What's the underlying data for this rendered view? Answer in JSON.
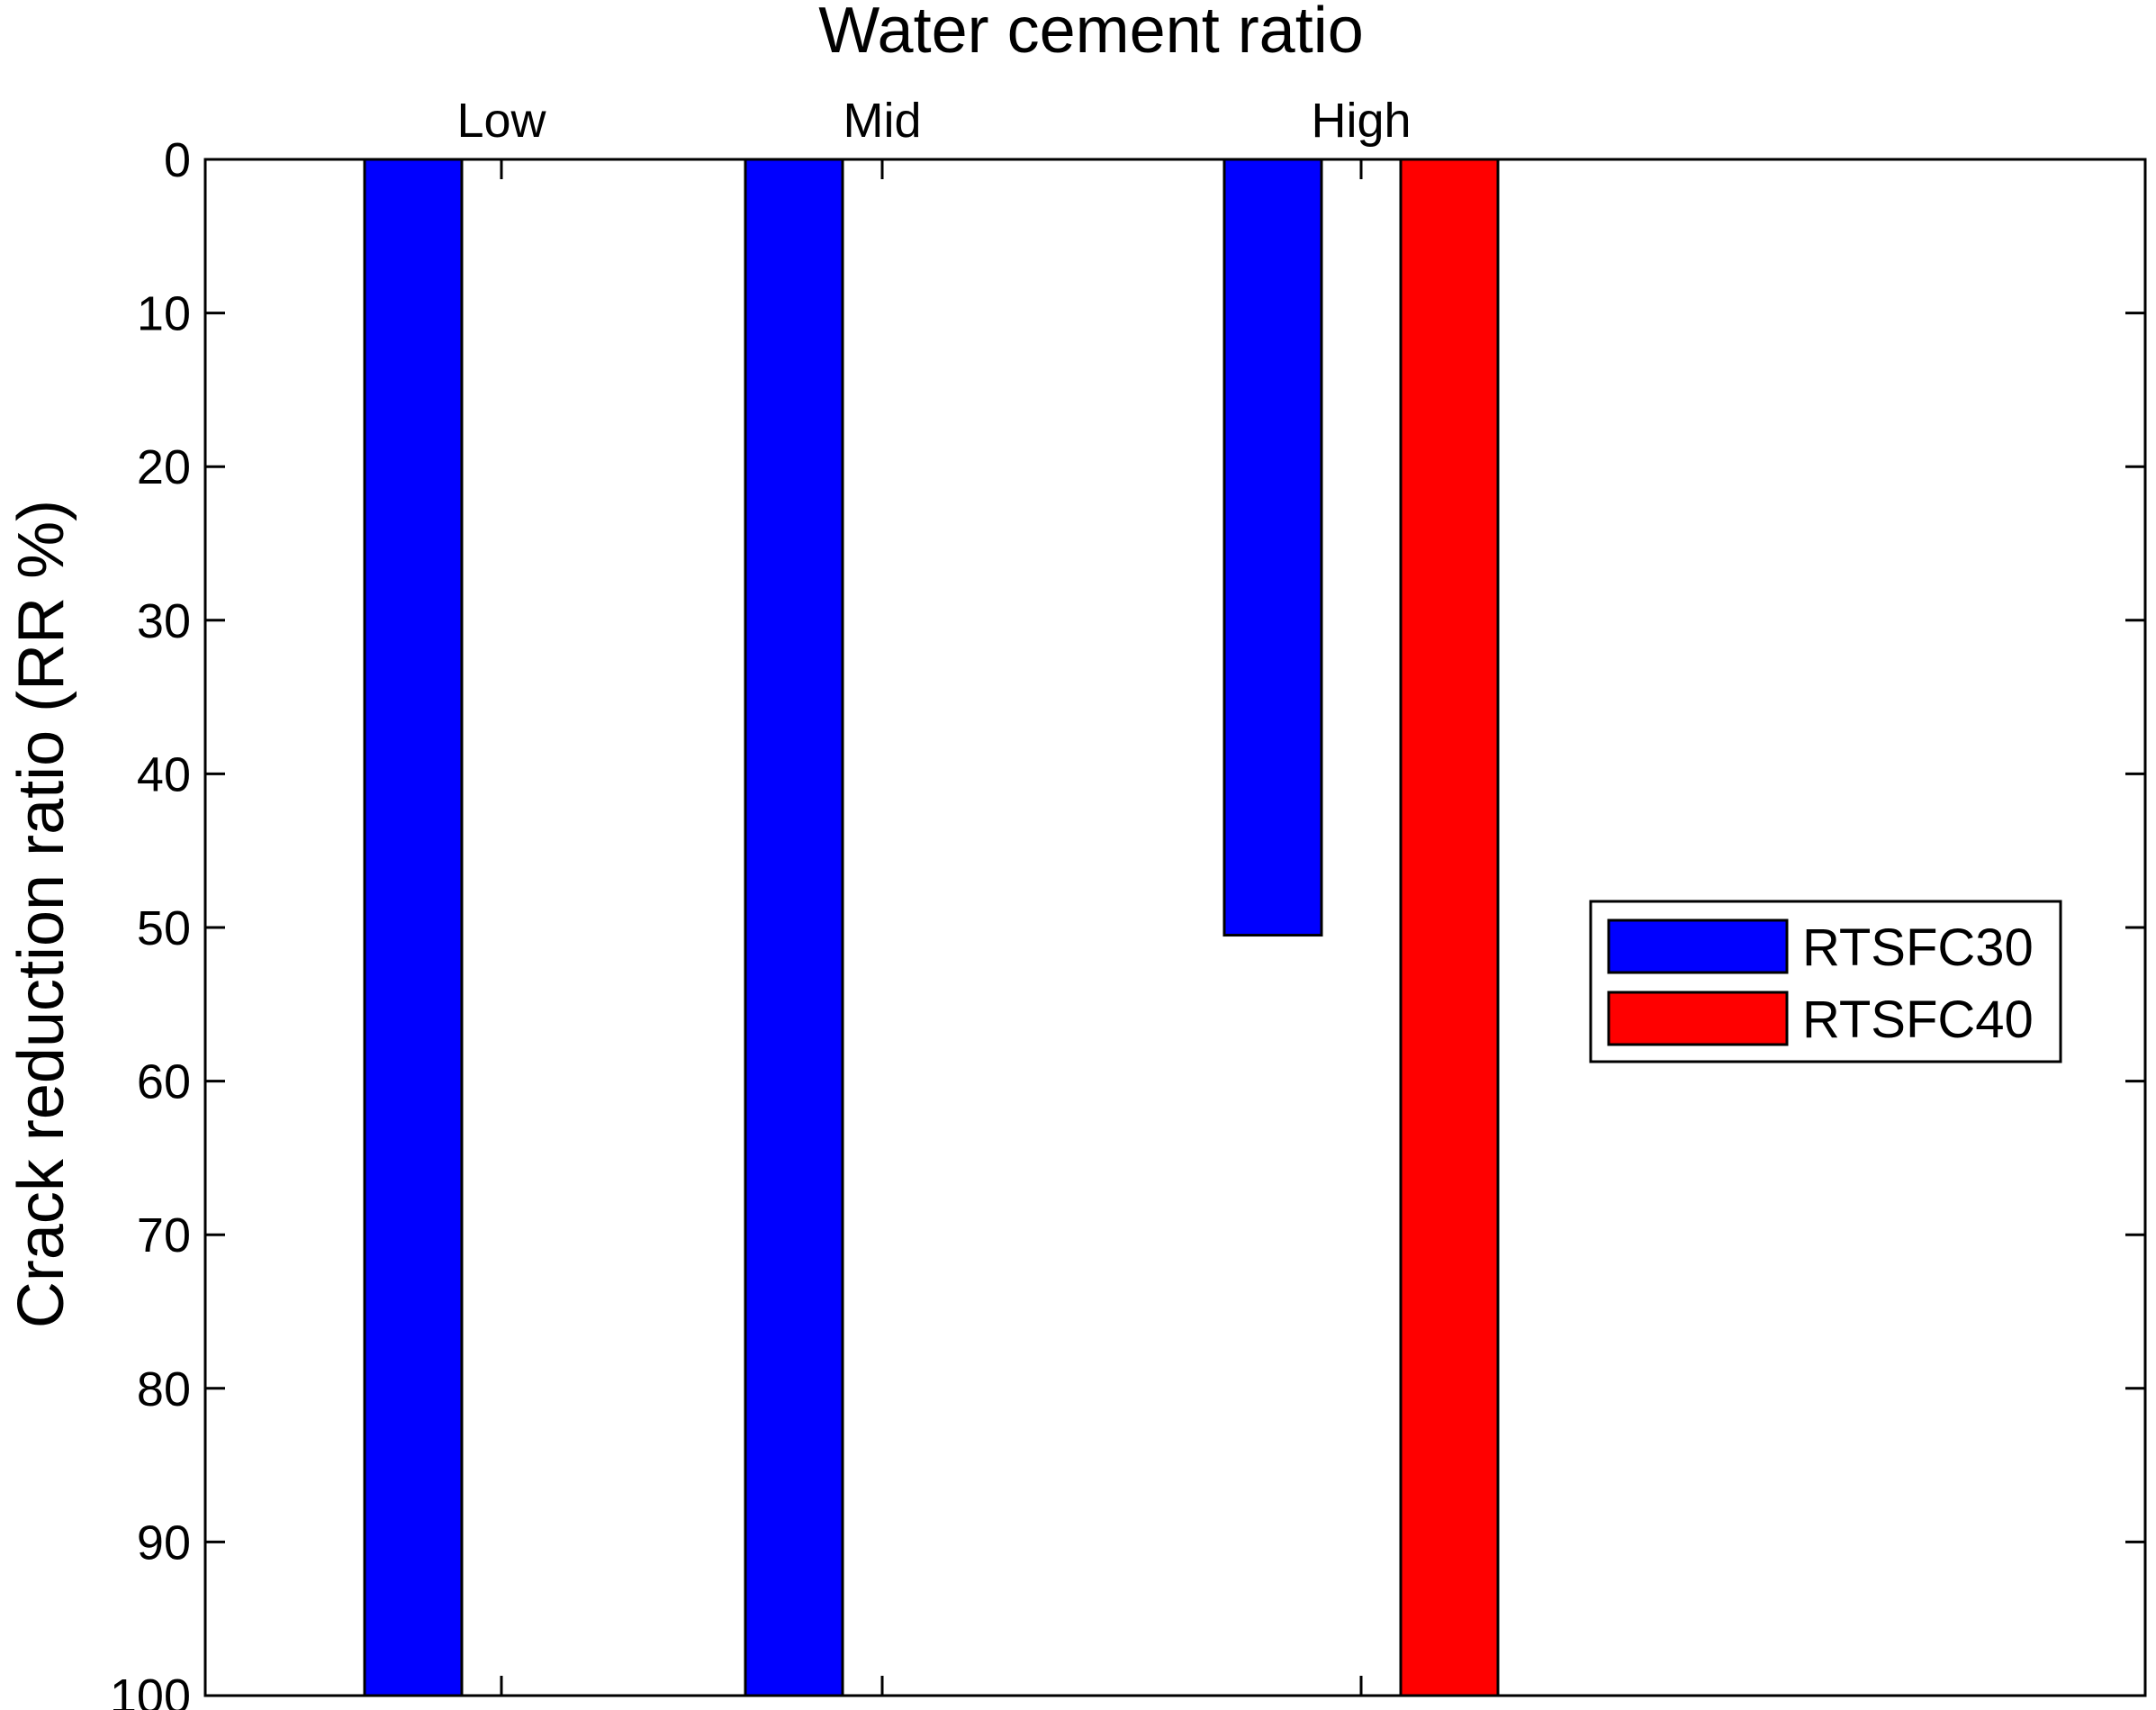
{
  "chart_data": {
    "type": "bar",
    "title": "Water cement ratio",
    "xlabel": "Water cement ratio",
    "ylabel": "Crack reduction ratio (RR %)",
    "categories": [
      "Low",
      "Mid",
      "High"
    ],
    "ylim": [
      0,
      100
    ],
    "y_reversed": true,
    "x_axis_position": "top",
    "yticks": [
      "0",
      "10",
      "20",
      "30",
      "40",
      "50",
      "60",
      "70",
      "80",
      "90",
      "100"
    ],
    "grid": false,
    "legend_position": "right",
    "series": [
      {
        "name": "RTSFC30",
        "color": "#0000ff",
        "values": [
          100,
          100,
          50.5
        ]
      },
      {
        "name": "RTSFC40",
        "color": "#ff0000",
        "values": [
          null,
          null,
          100
        ]
      }
    ]
  }
}
